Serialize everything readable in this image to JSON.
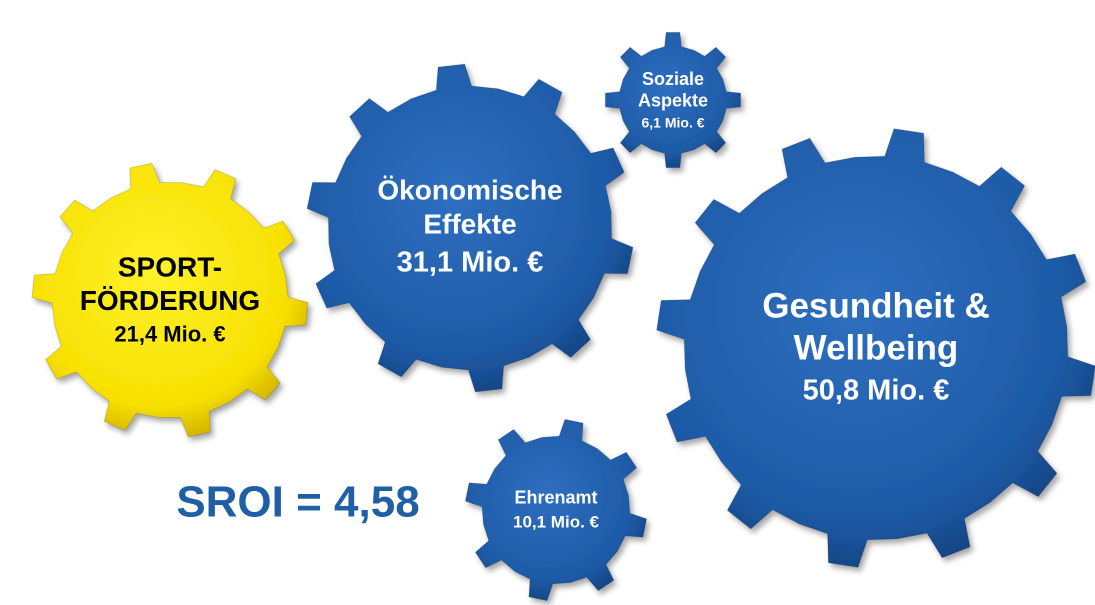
{
  "gears": [
    {
      "lines": [
        "SPORT-",
        "FÖRDERUNG"
      ],
      "value": "21,4 Mio. €"
    },
    {
      "lines": [
        "Ökonomische",
        "Effekte"
      ],
      "value": "31,1 Mio. €"
    },
    {
      "lines": [
        "Soziale",
        "Aspekte"
      ],
      "value": "6,1 Mio. €"
    },
    {
      "lines": [
        "Gesundheit &",
        "Wellbeing"
      ],
      "value": "50,8 Mio. €"
    },
    {
      "lines": [
        "Ehrenamt"
      ],
      "value": "10,1 Mio. €"
    }
  ],
  "sroi": "SROI = 4,58"
}
